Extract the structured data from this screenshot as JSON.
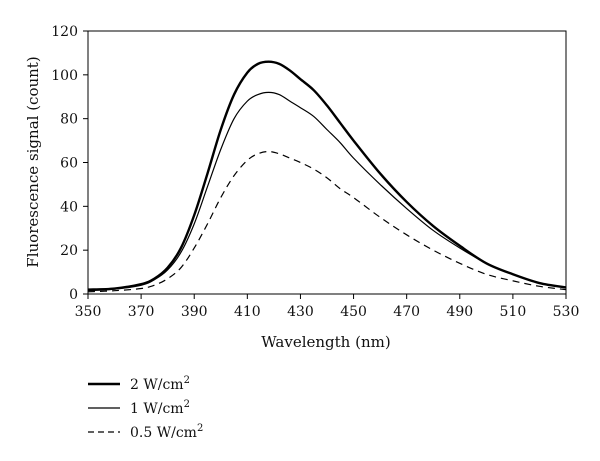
{
  "chart_data": {
    "type": "line",
    "title": "",
    "xlabel": "Wavelength (nm)",
    "ylabel": "Fluorescence signal (count)",
    "xlim": [
      350,
      530
    ],
    "ylim": [
      0,
      120
    ],
    "xticks": [
      350,
      370,
      390,
      410,
      430,
      450,
      470,
      490,
      510,
      530
    ],
    "yticks": [
      0,
      20,
      40,
      60,
      80,
      100,
      120
    ],
    "grid": false,
    "legend_position": "bottom-left",
    "series": [
      {
        "name": "2 W/cm",
        "name_sup": "2",
        "style": "thick-solid",
        "x": [
          350,
          360,
          370,
          375,
          380,
          385,
          390,
          395,
          400,
          405,
          410,
          414,
          418,
          422,
          426,
          430,
          435,
          440,
          445,
          450,
          460,
          470,
          480,
          490,
          500,
          510,
          520,
          530
        ],
        "y": [
          2,
          2.5,
          4.5,
          7,
          12,
          21,
          36,
          55,
          75,
          91,
          101,
          105,
          106,
          105,
          102,
          98,
          93,
          86,
          78,
          70,
          55,
          42,
          31,
          22,
          14,
          9,
          5,
          3
        ]
      },
      {
        "name": "1 W/cm",
        "name_sup": "2",
        "style": "thin-solid",
        "x": [
          350,
          360,
          370,
          375,
          380,
          385,
          390,
          395,
          400,
          405,
          410,
          414,
          418,
          422,
          426,
          430,
          435,
          440,
          445,
          450,
          460,
          470,
          480,
          490,
          500,
          510,
          520,
          530
        ],
        "y": [
          1.5,
          2.2,
          4,
          6.5,
          11,
          19,
          32,
          49,
          66,
          80,
          88,
          91,
          92,
          91,
          88,
          85,
          81,
          75,
          69,
          62,
          50,
          39,
          29,
          21,
          14,
          9,
          5,
          3
        ]
      },
      {
        "name": "0.5 W/cm",
        "name_sup": "2",
        "style": "dashed",
        "x": [
          350,
          360,
          370,
          375,
          380,
          385,
          390,
          395,
          400,
          405,
          410,
          414,
          418,
          422,
          426,
          430,
          435,
          440,
          445,
          450,
          460,
          470,
          480,
          490,
          500,
          510,
          520,
          530
        ],
        "y": [
          1,
          1.5,
          2.5,
          4,
          7,
          12,
          21,
          32,
          44,
          54,
          61,
          64,
          65,
          64,
          62,
          60,
          57,
          53,
          48,
          44,
          35,
          27,
          20,
          14,
          9,
          6,
          3.5,
          2
        ]
      }
    ]
  }
}
